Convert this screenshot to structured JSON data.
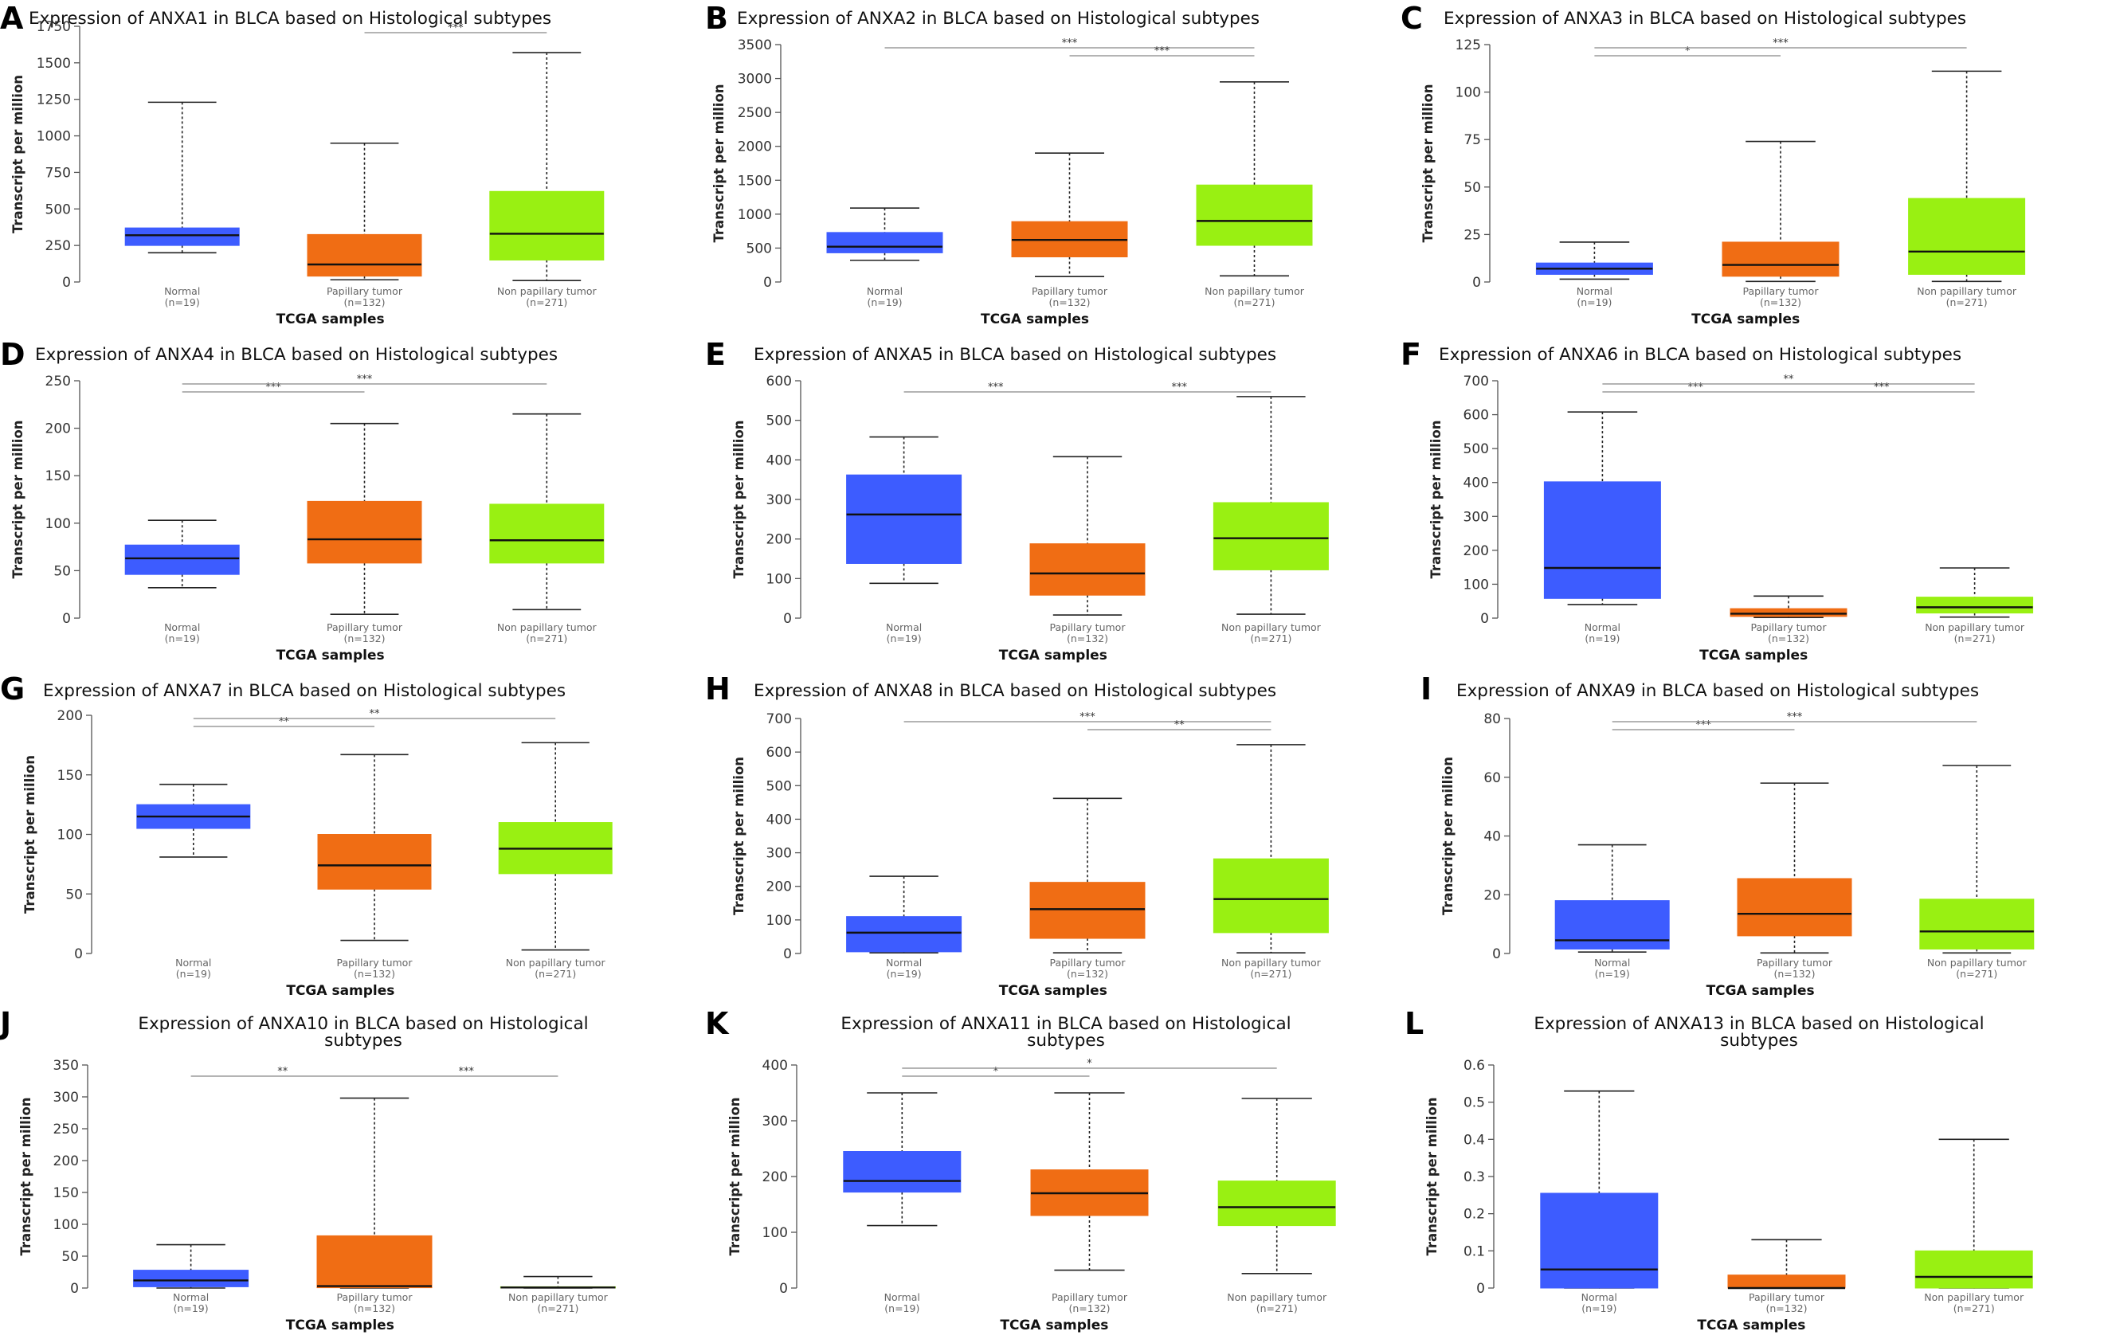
{
  "colors": {
    "normal": "#3d5cff",
    "papillary": "#f06d14",
    "non_papillary": "#99f012"
  },
  "chart_data": [
    {
      "panel": "A",
      "type": "box",
      "title": "Expression of ANXA1 in BLCA based on Histological subtypes",
      "ylabel": "Transcript per million",
      "xlabel": "TCGA samples",
      "yticks": [
        0,
        250,
        500,
        750,
        1000,
        1250,
        1500,
        1750
      ],
      "ylim": [
        0,
        1750
      ],
      "categories": [
        "Normal",
        "Papillary tumor",
        "Non papillary tumor"
      ],
      "n_labels": [
        "(n=19)",
        "(n=132)",
        "(n=271)"
      ],
      "boxes": [
        {
          "min": 200,
          "q1": 250,
          "median": 320,
          "q3": 370,
          "max": 1230
        },
        {
          "min": 15,
          "q1": 40,
          "median": 120,
          "q3": 325,
          "max": 950
        },
        {
          "min": 10,
          "q1": 150,
          "median": 330,
          "q3": 620,
          "max": 1570
        }
      ],
      "significance": [
        {
          "from": 1,
          "to": 2,
          "label": "***"
        }
      ]
    },
    {
      "panel": "B",
      "type": "box",
      "title": "Expression of ANXA2 in BLCA based on Histological subtypes",
      "ylabel": "Transcript per million",
      "xlabel": "TCGA samples",
      "yticks": [
        0,
        500,
        1000,
        1500,
        2000,
        2500,
        3000,
        3500
      ],
      "ylim": [
        0,
        3500
      ],
      "categories": [
        "Normal",
        "Papillary tumor",
        "Non papillary tumor"
      ],
      "n_labels": [
        "(n=19)",
        "(n=132)",
        "(n=271)"
      ],
      "boxes": [
        {
          "min": 320,
          "q1": 430,
          "median": 520,
          "q3": 730,
          "max": 1090
        },
        {
          "min": 80,
          "q1": 370,
          "median": 620,
          "q3": 890,
          "max": 1900
        },
        {
          "min": 90,
          "q1": 540,
          "median": 900,
          "q3": 1430,
          "max": 2950
        }
      ],
      "significance": [
        {
          "from": 0,
          "to": 2,
          "label": "***"
        },
        {
          "from": 1,
          "to": 2,
          "label": "***"
        }
      ]
    },
    {
      "panel": "C",
      "type": "box",
      "title": "Expression of ANXA3 in BLCA based on Histological subtypes",
      "ylabel": "Transcript per million",
      "xlabel": "TCGA samples",
      "yticks": [
        0,
        25,
        50,
        75,
        100,
        125
      ],
      "ylim": [
        0,
        125
      ],
      "categories": [
        "Normal",
        "Papillary tumor",
        "Non papillary tumor"
      ],
      "n_labels": [
        "(n=19)",
        "(n=132)",
        "(n=271)"
      ],
      "boxes": [
        {
          "min": 1.5,
          "q1": 4,
          "median": 7,
          "q3": 10,
          "max": 21
        },
        {
          "min": 0.3,
          "q1": 3,
          "median": 9,
          "q3": 21,
          "max": 74
        },
        {
          "min": 0.3,
          "q1": 4,
          "median": 16,
          "q3": 44,
          "max": 111
        }
      ],
      "significance": [
        {
          "from": 0,
          "to": 1,
          "label": "*"
        },
        {
          "from": 0,
          "to": 2,
          "label": "***"
        }
      ]
    },
    {
      "panel": "D",
      "type": "box",
      "title": "Expression of ANXA4 in BLCA based on Histological subtypes",
      "ylabel": "Transcript per million",
      "xlabel": "TCGA samples",
      "yticks": [
        0,
        50,
        100,
        150,
        200,
        250
      ],
      "ylim": [
        0,
        250
      ],
      "categories": [
        "Normal",
        "Papillary tumor",
        "Non papillary tumor"
      ],
      "n_labels": [
        "(n=19)",
        "(n=132)",
        "(n=271)"
      ],
      "boxes": [
        {
          "min": 32,
          "q1": 46,
          "median": 63,
          "q3": 77,
          "max": 103
        },
        {
          "min": 4,
          "q1": 58,
          "median": 83,
          "q3": 123,
          "max": 205
        },
        {
          "min": 9,
          "q1": 58,
          "median": 82,
          "q3": 120,
          "max": 215
        }
      ],
      "significance": [
        {
          "from": 0,
          "to": 1,
          "label": "***"
        },
        {
          "from": 0,
          "to": 2,
          "label": "***"
        }
      ]
    },
    {
      "panel": "E",
      "type": "box",
      "title": "Expression of ANXA5 in BLCA based on Histological subtypes",
      "ylabel": "Transcript per million",
      "xlabel": "TCGA samples",
      "yticks": [
        0,
        100,
        200,
        300,
        400,
        500,
        600
      ],
      "ylim": [
        0,
        600
      ],
      "categories": [
        "Normal",
        "Papillary tumor",
        "Non papillary tumor"
      ],
      "n_labels": [
        "(n=19)",
        "(n=132)",
        "(n=271)"
      ],
      "boxes": [
        {
          "min": 88,
          "q1": 138,
          "median": 262,
          "q3": 362,
          "max": 458
        },
        {
          "min": 8,
          "q1": 58,
          "median": 113,
          "q3": 188,
          "max": 408
        },
        {
          "min": 10,
          "q1": 122,
          "median": 202,
          "q3": 292,
          "max": 560
        }
      ],
      "significance": [
        {
          "from": 0,
          "to": 1,
          "label": "***"
        },
        {
          "from": 1,
          "to": 2,
          "label": "***"
        }
      ]
    },
    {
      "panel": "F",
      "type": "box",
      "title": "Expression of ANXA6 in BLCA based on Histological subtypes",
      "ylabel": "Transcript per million",
      "xlabel": "TCGA samples",
      "yticks": [
        0,
        100,
        200,
        300,
        400,
        500,
        600,
        700
      ],
      "ylim": [
        0,
        700
      ],
      "categories": [
        "Normal",
        "Papillary tumor",
        "Non papillary tumor"
      ],
      "n_labels": [
        "(n=19)",
        "(n=132)",
        "(n=271)"
      ],
      "boxes": [
        {
          "min": 40,
          "q1": 58,
          "median": 148,
          "q3": 402,
          "max": 608
        },
        {
          "min": 2,
          "q1": 5,
          "median": 13,
          "q3": 28,
          "max": 65
        },
        {
          "min": 3,
          "q1": 15,
          "median": 32,
          "q3": 62,
          "max": 148
        }
      ],
      "significance": [
        {
          "from": 0,
          "to": 1,
          "label": "***"
        },
        {
          "from": 0,
          "to": 2,
          "label": "**"
        },
        {
          "from": 1,
          "to": 2,
          "label": "***"
        }
      ]
    },
    {
      "panel": "G",
      "type": "box",
      "title": "Expression of ANXA7 in BLCA based on Histological subtypes",
      "ylabel": "Transcript per million",
      "xlabel": "TCGA samples",
      "yticks": [
        0,
        50,
        100,
        150,
        200
      ],
      "ylim": [
        0,
        200
      ],
      "categories": [
        "Normal",
        "Papillary tumor",
        "Non papillary tumor"
      ],
      "n_labels": [
        "(n=19)",
        "(n=132)",
        "(n=271)"
      ],
      "boxes": [
        {
          "min": 81,
          "q1": 105,
          "median": 115,
          "q3": 125,
          "max": 142
        },
        {
          "min": 11,
          "q1": 54,
          "median": 74,
          "q3": 100,
          "max": 167
        },
        {
          "min": 3,
          "q1": 67,
          "median": 88,
          "q3": 110,
          "max": 177
        }
      ],
      "significance": [
        {
          "from": 0,
          "to": 1,
          "label": "**"
        },
        {
          "from": 0,
          "to": 2,
          "label": "**"
        }
      ]
    },
    {
      "panel": "H",
      "type": "box",
      "title": "Expression of ANXA8 in BLCA based on Histological subtypes",
      "ylabel": "Transcript per million",
      "xlabel": "TCGA samples",
      "yticks": [
        0,
        100,
        200,
        300,
        400,
        500,
        600,
        700
      ],
      "ylim": [
        0,
        700
      ],
      "categories": [
        "Normal",
        "Papillary tumor",
        "Non papillary tumor"
      ],
      "n_labels": [
        "(n=19)",
        "(n=132)",
        "(n=271)"
      ],
      "boxes": [
        {
          "min": 2,
          "q1": 5,
          "median": 62,
          "q3": 110,
          "max": 230
        },
        {
          "min": 2,
          "q1": 45,
          "median": 132,
          "q3": 212,
          "max": 462
        },
        {
          "min": 2,
          "q1": 62,
          "median": 162,
          "q3": 282,
          "max": 622
        }
      ],
      "significance": [
        {
          "from": 0,
          "to": 2,
          "label": "***"
        },
        {
          "from": 1,
          "to": 2,
          "label": "**"
        }
      ]
    },
    {
      "panel": "I",
      "type": "box",
      "title": "Expression of ANXA9 in BLCA based on Histological subtypes",
      "ylabel": "Transcript per million",
      "xlabel": "TCGA samples",
      "yticks": [
        0,
        20,
        40,
        60,
        80
      ],
      "ylim": [
        0,
        80
      ],
      "categories": [
        "Normal",
        "Papillary tumor",
        "Non papillary tumor"
      ],
      "n_labels": [
        "(n=19)",
        "(n=132)",
        "(n=271)"
      ],
      "boxes": [
        {
          "min": 0.5,
          "q1": 1.5,
          "median": 4.5,
          "q3": 18,
          "max": 37
        },
        {
          "min": 0.2,
          "q1": 6,
          "median": 13.5,
          "q3": 25.5,
          "max": 58
        },
        {
          "min": 0.2,
          "q1": 1.5,
          "median": 7.5,
          "q3": 18.5,
          "max": 64
        }
      ],
      "significance": [
        {
          "from": 0,
          "to": 1,
          "label": "***"
        },
        {
          "from": 0,
          "to": 2,
          "label": "***"
        }
      ]
    },
    {
      "panel": "J",
      "type": "box",
      "title": "Expression of ANXA10 in BLCA based on Histological subtypes",
      "ylabel": "Transcript per million",
      "xlabel": "TCGA samples",
      "yticks": [
        0,
        50,
        100,
        150,
        200,
        250,
        300,
        350
      ],
      "ylim": [
        0,
        350
      ],
      "categories": [
        "Normal",
        "Papillary tumor",
        "Non papillary tumor"
      ],
      "n_labels": [
        "(n=19)",
        "(n=132)",
        "(n=271)"
      ],
      "boxes": [
        {
          "min": 0,
          "q1": 2,
          "median": 12,
          "q3": 28,
          "max": 68
        },
        {
          "min": 0,
          "q1": 0.5,
          "median": 3,
          "q3": 82,
          "max": 298
        },
        {
          "min": 0,
          "q1": 0.2,
          "median": 0.8,
          "q3": 2,
          "max": 18
        }
      ],
      "significance": [
        {
          "from": 0,
          "to": 1,
          "label": "**"
        },
        {
          "from": 1,
          "to": 2,
          "label": "***"
        }
      ]
    },
    {
      "panel": "K",
      "type": "box",
      "title": "Expression of ANXA11 in BLCA based on Histological subtypes",
      "ylabel": "Transcript per million",
      "xlabel": "TCGA samples",
      "yticks": [
        0,
        100,
        200,
        300,
        400
      ],
      "ylim": [
        0,
        400
      ],
      "categories": [
        "Normal",
        "Papillary tumor",
        "Non papillary tumor"
      ],
      "n_labels": [
        "(n=19)",
        "(n=132)",
        "(n=271)"
      ],
      "boxes": [
        {
          "min": 112,
          "q1": 172,
          "median": 192,
          "q3": 245,
          "max": 350
        },
        {
          "min": 32,
          "q1": 130,
          "median": 170,
          "q3": 212,
          "max": 350
        },
        {
          "min": 26,
          "q1": 112,
          "median": 145,
          "q3": 192,
          "max": 340
        }
      ],
      "significance": [
        {
          "from": 0,
          "to": 1,
          "label": "*"
        },
        {
          "from": 0,
          "to": 2,
          "label": "*"
        }
      ]
    },
    {
      "panel": "L",
      "type": "box",
      "title": "Expression of ANXA13 in BLCA based on Histological subtypes",
      "ylabel": "Transcript per million",
      "xlabel": "TCGA samples",
      "yticks": [
        0,
        0.1,
        0.2,
        0.3,
        0.4,
        0.5,
        0.6
      ],
      "ylim": [
        0,
        0.6
      ],
      "categories": [
        "Normal",
        "Papillary tumor",
        "Non papillary tumor"
      ],
      "n_labels": [
        "(n=19)",
        "(n=132)",
        "(n=271)"
      ],
      "boxes": [
        {
          "min": 0,
          "q1": 0,
          "median": 0.05,
          "q3": 0.255,
          "max": 0.53
        },
        {
          "min": 0,
          "q1": 0,
          "median": 0,
          "q3": 0.035,
          "max": 0.13
        },
        {
          "min": 0,
          "q1": 0,
          "median": 0.03,
          "q3": 0.1,
          "max": 0.4
        }
      ],
      "significance": []
    }
  ]
}
